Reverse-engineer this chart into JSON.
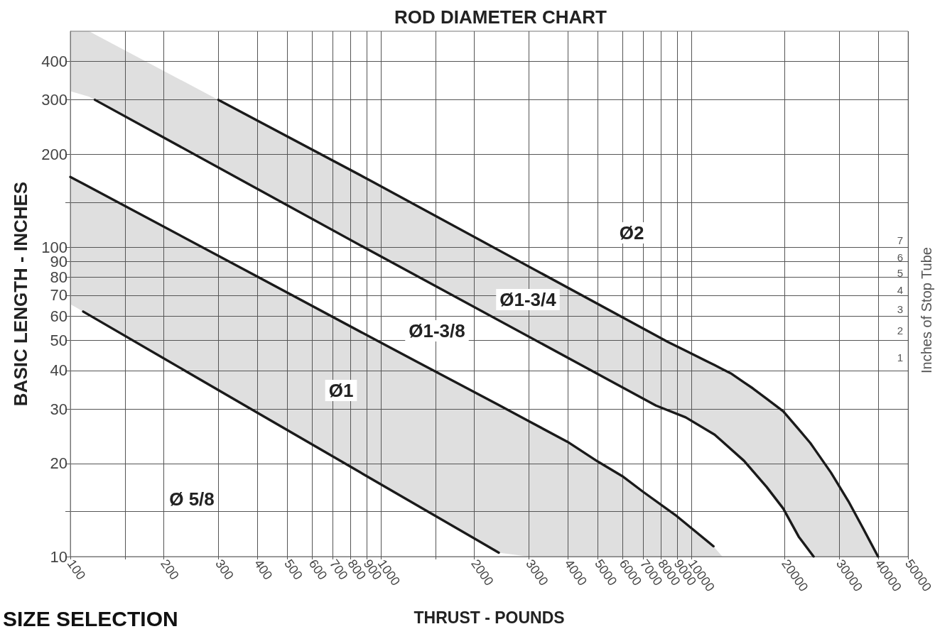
{
  "chart_data": {
    "type": "line",
    "title": "ROD DIAMETER CHART",
    "xlabel": "THRUST - POUNDS",
    "ylabel": "BASIC LENGTH - INCHES",
    "log": "xy",
    "grid": true,
    "line_style": "solid",
    "xlim": [
      100,
      50000
    ],
    "xticks": [
      100,
      {
        "value": 150,
        "label": null
      },
      200,
      300,
      400,
      500,
      600,
      700,
      800,
      900,
      1000,
      {
        "value": 1500,
        "label": null
      },
      2000,
      3000,
      4000,
      5000,
      6000,
      7000,
      8000,
      9000,
      10000,
      20000,
      30000,
      40000,
      50000
    ],
    "ylim": [
      10,
      500
    ],
    "yticks": [
      10,
      {
        "value": 14,
        "label": null
      },
      20,
      30,
      40,
      50,
      60,
      70,
      80,
      90,
      100,
      {
        "value": 140,
        "label": null
      },
      200,
      300,
      400
    ],
    "series": [
      {
        "color": "#1a1a1a",
        "x": [
          110,
          400,
          2400
        ],
        "values": [
          62,
          29.2,
          10.3
        ]
      },
      {
        "color": "#1a1a1a",
        "x": [
          100,
          110,
          400,
          1000,
          2400,
          3000,
          4000,
          5000,
          6000,
          7000,
          9000,
          11800,
          12600
        ],
        "values": [
          169,
          160.6,
          80.5,
          49.2,
          30.9,
          27.4,
          23.5,
          20.3,
          18.2,
          16.2,
          13.5,
          10.8,
          null
        ],
        "upper": [
          169,
          160.6,
          80.5,
          49.2,
          30.9,
          27.4,
          23.5,
          20.3,
          18.2,
          16.2,
          13.5,
          10.8,
          10
        ],
        "lower": [
          65.5,
          62,
          29.2,
          17.1,
          10.3,
          10,
          10,
          10,
          10,
          10,
          10,
          10,
          10
        ]
      },
      {
        "color": "#1a1a1a",
        "x": [
          120,
          900,
          7700,
          9600,
          11900,
          14800,
          17500,
          19800,
          22200,
          24800
        ],
        "values": [
          300,
          99,
          30.8,
          28.2,
          24.8,
          20.4,
          16.8,
          14.3,
          11.6,
          10
        ]
      },
      {
        "color": "#1a1a1a",
        "x": [
          100,
          115,
          120,
          300,
          900,
          7700,
          8400,
          9600,
          11900,
          13500,
          14800,
          15800,
          17500,
          19800,
          22200,
          24200,
          24800,
          28200,
          32100,
          35700,
          40000
        ],
        "values": [
          null,
          null,
          null,
          300,
          167,
          51.9,
          49.5,
          46.3,
          41.6,
          39,
          36.6,
          35,
          32.4,
          29.5,
          25.8,
          23.3,
          22.5,
          18.7,
          15.1,
          12.4,
          10
        ],
        "upper": [
          500,
          500,
          488,
          300,
          167,
          51.9,
          49.5,
          46.3,
          41.6,
          39,
          36.6,
          35,
          32.4,
          29.5,
          25.8,
          23.3,
          22.5,
          18.7,
          15.1,
          12.4,
          10
        ],
        "lower": [
          320,
          307,
          300,
          181,
          99,
          30.8,
          29.8,
          28.2,
          24.8,
          22.2,
          20.4,
          18.9,
          16.8,
          14.3,
          11.6,
          10.3,
          10,
          10,
          10,
          10,
          10
        ]
      }
    ],
    "annotations": [
      "Ø 5/8",
      "Ø1",
      "Ø1-3/8",
      "Ø1-3/4",
      "Ø2",
      "1",
      "2",
      "3",
      "4",
      "5",
      "6",
      "7",
      "Inches of Stop Tube",
      "SIZE SELECTION"
    ]
  }
}
